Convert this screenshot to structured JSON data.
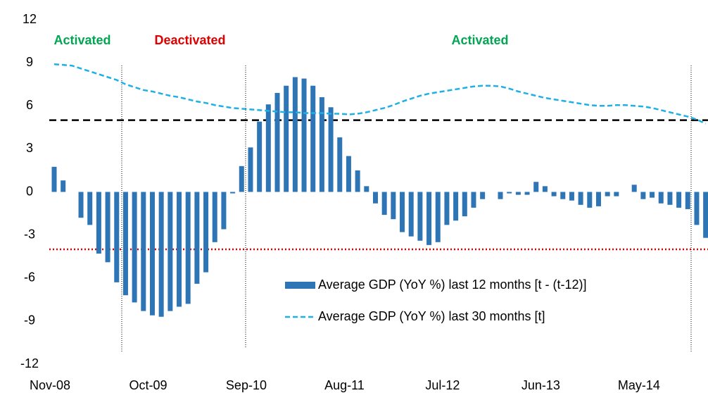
{
  "chart_data": {
    "type": "bar",
    "categories": [
      "Nov-08",
      null,
      null,
      null,
      null,
      null,
      null,
      null,
      null,
      null,
      null,
      "Oct-09",
      null,
      null,
      null,
      null,
      null,
      null,
      null,
      null,
      null,
      null,
      "Sep-10",
      null,
      null,
      null,
      null,
      null,
      null,
      null,
      null,
      null,
      null,
      "Aug-11",
      null,
      null,
      null,
      null,
      null,
      null,
      null,
      null,
      null,
      null,
      "Jul-12",
      null,
      null,
      null,
      null,
      null,
      null,
      null,
      null,
      null,
      null,
      "Jun-13",
      null,
      null,
      null,
      null,
      null,
      null,
      null,
      null,
      null,
      null,
      "May-14",
      null,
      null,
      null,
      null,
      null,
      null,
      null
    ],
    "series": [
      {
        "name": "Average GDP (YoY %) last 12 months [t - (t-12)]",
        "type": "bar",
        "color": "#2e75b6",
        "values": [
          1.75,
          0.8,
          0,
          -1.8,
          -2.3,
          -4.3,
          -4.9,
          -6.3,
          -7.2,
          -7.7,
          -8.3,
          -8.6,
          -8.7,
          -8.3,
          -8.0,
          -7.8,
          -6.4,
          -5.6,
          -3.5,
          -2.6,
          -0.1,
          1.8,
          3.1,
          4.9,
          6.1,
          6.9,
          7.4,
          8.0,
          7.9,
          7.4,
          6.6,
          5.9,
          3.8,
          2.5,
          1.5,
          0.4,
          -0.8,
          -1.6,
          -1.9,
          -2.8,
          -3.1,
          -3.4,
          -3.7,
          -3.5,
          -2.3,
          -2.0,
          -1.7,
          -1.1,
          -0.5,
          0,
          -0.5,
          -0.1,
          -0.2,
          -0.2,
          0.7,
          0.4,
          -0.3,
          -0.5,
          -0.6,
          -0.9,
          -1.1,
          -1.0,
          -0.3,
          -0.3,
          0,
          0.5,
          -0.5,
          -0.4,
          -0.8,
          -0.9,
          -1.1,
          -1.2,
          -2.3,
          -3.2
        ]
      },
      {
        "name": "Average GDP (YoY %) last 30 months [t]",
        "type": "line",
        "color": "#1fb0e6",
        "values": [
          8.9,
          8.85,
          8.8,
          8.6,
          8.4,
          8.2,
          8.0,
          7.8,
          7.5,
          7.3,
          7.1,
          7.0,
          6.85,
          6.7,
          6.6,
          6.45,
          6.3,
          6.2,
          6.05,
          5.95,
          5.85,
          5.8,
          5.75,
          5.7,
          5.65,
          5.6,
          5.55,
          5.55,
          5.5,
          5.5,
          5.5,
          5.45,
          5.45,
          5.4,
          5.45,
          5.55,
          5.7,
          5.85,
          6.05,
          6.3,
          6.5,
          6.7,
          6.85,
          6.95,
          7.05,
          7.15,
          7.25,
          7.35,
          7.4,
          7.4,
          7.35,
          7.2,
          7.0,
          6.85,
          6.7,
          6.55,
          6.45,
          6.35,
          6.25,
          6.15,
          6.05,
          6.0,
          6.0,
          6.05,
          6.05,
          6.0,
          5.95,
          5.85,
          5.7,
          5.55,
          5.4,
          5.25,
          5.05,
          4.75
        ]
      }
    ],
    "reference_lines": [
      {
        "value": 5,
        "color": "#000000",
        "style": "dashed"
      },
      {
        "value": -4,
        "color": "#e00000",
        "style": "dotted"
      }
    ],
    "annotations": [
      {
        "text": "Activated",
        "color": "#00a651"
      },
      {
        "text": "Deactivated",
        "color": "#e00000"
      },
      {
        "text": "Activated",
        "color": "#00a651"
      }
    ],
    "ylim": [
      -12,
      12
    ],
    "yticks": [
      12,
      9,
      6,
      3,
      0,
      -3,
      -6,
      -9,
      -12
    ],
    "grid": false
  }
}
